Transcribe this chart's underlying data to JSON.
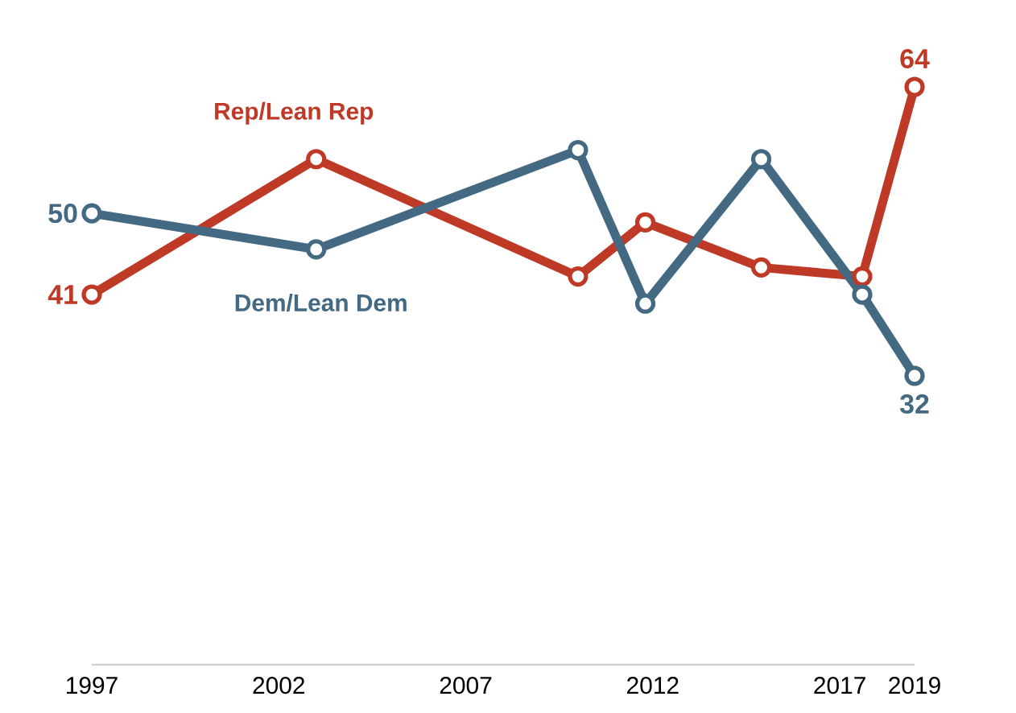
{
  "chart_data": {
    "type": "line",
    "x": [
      1997,
      2003,
      2010,
      2011.8,
      2014.9,
      2017.6,
      2019
    ],
    "series": [
      {
        "name": "Rep/Lean Rep",
        "color": "#bf3927",
        "values": [
          41,
          56,
          43,
          49,
          44,
          43,
          64
        ],
        "value_labels": [
          "41",
          null,
          null,
          null,
          null,
          null,
          "64"
        ]
      },
      {
        "name": "Dem/Lean Dem",
        "color": "#436983",
        "values": [
          50,
          46,
          57,
          40,
          56,
          41,
          32
        ],
        "value_labels": [
          "50",
          null,
          null,
          null,
          null,
          null,
          "32"
        ]
      }
    ],
    "xlim": [
      1997,
      2019
    ],
    "xticks": [
      1997,
      2002,
      2007,
      2012,
      2017,
      2019
    ],
    "tick_labels": "x",
    "legend": false,
    "grid": false,
    "marker": "circle",
    "line_style": "solid"
  }
}
